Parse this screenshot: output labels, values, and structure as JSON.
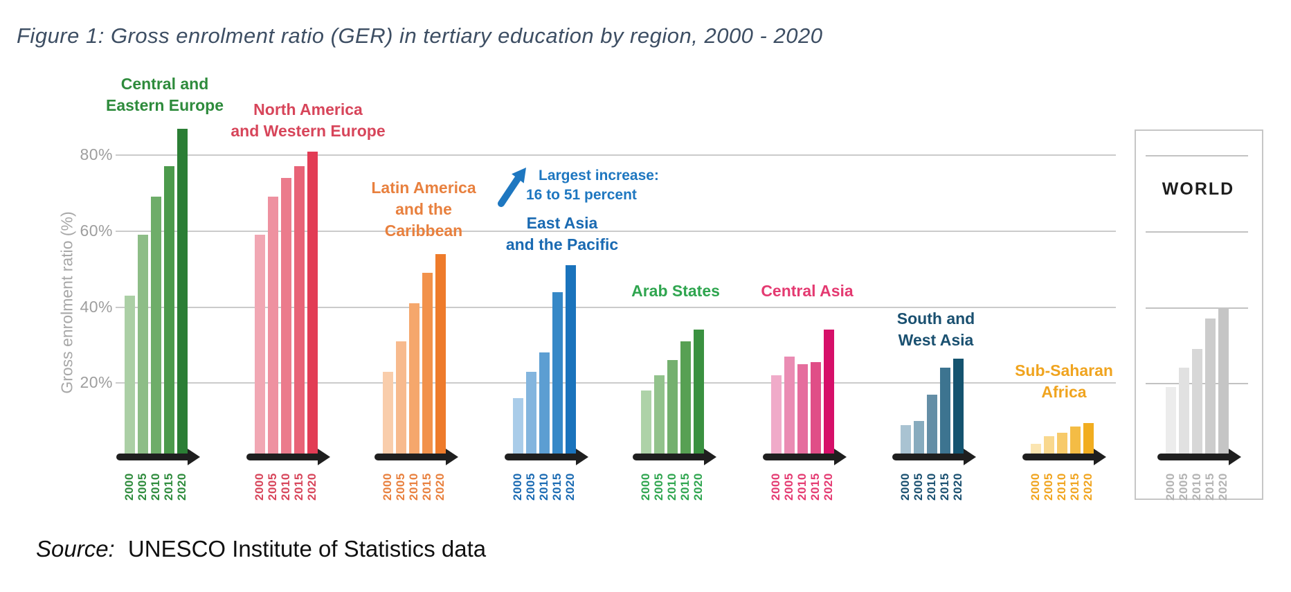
{
  "title": "Figure 1: Gross enrolment ratio (GER) in tertiary education by region, 2000 - 2020",
  "source": {
    "prefix": "Source:",
    "text": "UNESCO Institute of Statistics data"
  },
  "colors": {
    "title_text": "#3d4e63",
    "axis_text": "#9e9e9e",
    "gridline": "#cbcbcb",
    "axis_arrow": "#1f1f1f",
    "annotation_blue": "#1e77c0"
  },
  "chart_data": {
    "type": "bar",
    "title": "Gross enrolment ratio (GER) in tertiary education by region, 2000 - 2020",
    "xlabel": "",
    "ylabel": "Gross enrolment ratio (%)",
    "ylim": [
      0,
      90
    ],
    "grid": true,
    "categories": [
      "2000",
      "2005",
      "2010",
      "2015",
      "2020"
    ],
    "y_ticks": [
      {
        "label": "80%",
        "value": 80
      },
      {
        "label": "60%",
        "value": 60
      },
      {
        "label": "40%",
        "value": 40
      },
      {
        "label": "20%",
        "value": 20
      }
    ],
    "annotation": {
      "lines": [
        "Largest increase:",
        "16 to 51 percent"
      ],
      "color": "#1e77c0",
      "target_region": "East Asia and the Pacific"
    },
    "regions": [
      {
        "name": "Central and Eastern Europe",
        "label_lines": [
          "Central and",
          "Eastern Europe"
        ],
        "label_color": "#2e8b3c",
        "year_color": "#2e8b3c",
        "bar_colors": [
          "#abcfa5",
          "#8dbd87",
          "#6ead69",
          "#4c9a4c",
          "#2b7e35"
        ],
        "values": [
          43,
          59,
          69,
          77,
          87
        ]
      },
      {
        "name": "North America and Western Europe",
        "label_lines": [
          "North America",
          "and Western Europe"
        ],
        "label_color": "#d7455a",
        "year_color": "#d7455a",
        "bar_colors": [
          "#f1a7b3",
          "#ee91a0",
          "#eb7b8c",
          "#e86377",
          "#e23c55"
        ],
        "values": [
          59,
          69,
          74,
          77,
          81
        ]
      },
      {
        "name": "Latin America and the Caribbean",
        "label_lines": [
          "Latin America",
          "and the",
          "Caribbean"
        ],
        "label_color": "#e8803e",
        "year_color": "#e8803e",
        "bar_colors": [
          "#f9cdab",
          "#f7ba8d",
          "#f5a76c",
          "#f2924b",
          "#ee7b2b"
        ],
        "values": [
          23,
          31,
          41,
          49,
          54
        ]
      },
      {
        "name": "East Asia and the Pacific",
        "label_lines": [
          "East Asia",
          "and the Pacific"
        ],
        "label_color": "#1a6ab2",
        "year_color": "#1a6ab2",
        "bar_colors": [
          "#a9cce9",
          "#83b5de",
          "#5c9ed2",
          "#3688c7",
          "#1a73bc"
        ],
        "values": [
          16,
          23,
          28,
          44,
          51
        ]
      },
      {
        "name": "Arab States",
        "label_lines": [
          "Arab States"
        ],
        "label_color": "#2fa54f",
        "year_color": "#2fa54f",
        "bar_colors": [
          "#aed2a8",
          "#92c28c",
          "#74b06f",
          "#57a053",
          "#3a9140"
        ],
        "values": [
          18,
          22,
          26,
          31,
          34
        ]
      },
      {
        "name": "Central Asia",
        "label_lines": [
          "Central Asia"
        ],
        "label_color": "#e43a71",
        "year_color": "#e43a71",
        "bar_colors": [
          "#f0abc9",
          "#ea8cb3",
          "#e56d9d",
          "#e04e87",
          "#d60f69"
        ],
        "values": [
          22,
          27,
          25,
          25.5,
          34
        ]
      },
      {
        "name": "South and West Asia",
        "label_lines": [
          "South and",
          "West Asia"
        ],
        "label_color": "#1a5070",
        "year_color": "#1a5070",
        "bar_colors": [
          "#a9c3d2",
          "#87abbe",
          "#648ea6",
          "#3d7490",
          "#14536f"
        ],
        "values": [
          9,
          10,
          17,
          24,
          26.5
        ]
      },
      {
        "name": "Sub-Saharan Africa",
        "label_lines": [
          "Sub-Saharan",
          "Africa"
        ],
        "label_color": "#f0a41f",
        "year_color": "#f0a41f",
        "bar_colors": [
          "#fbe5b1",
          "#f9d88e",
          "#f7ca6a",
          "#f4bc45",
          "#f1ad20"
        ],
        "values": [
          4,
          6,
          7,
          8.5,
          9.5
        ]
      },
      {
        "name": "WORLD",
        "label_lines": [
          "WORLD"
        ],
        "label_color": "#1d1d1d",
        "year_color": "#b3b3b3",
        "bar_colors": [
          "#ececec",
          "#e1e1e1",
          "#d7d7d7",
          "#cccccc",
          "#c5c5c5"
        ],
        "values": [
          19,
          24,
          29,
          37,
          40
        ],
        "boxed": true
      }
    ]
  }
}
